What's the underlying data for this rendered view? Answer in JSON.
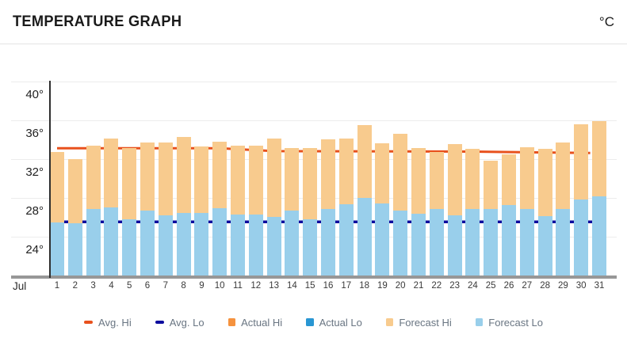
{
  "header": {
    "title": "TEMPERATURE GRAPH",
    "unit": "°C"
  },
  "x_axis": {
    "month_label": "Jul",
    "days": [
      "1",
      "2",
      "3",
      "4",
      "5",
      "6",
      "7",
      "8",
      "9",
      "10",
      "11",
      "12",
      "13",
      "14",
      "15",
      "16",
      "17",
      "18",
      "19",
      "20",
      "21",
      "22",
      "23",
      "24",
      "25",
      "26",
      "27",
      "28",
      "29",
      "30",
      "31"
    ]
  },
  "y_axis": {
    "tick_labels": [
      "40°",
      "36°",
      "32°",
      "28°",
      "24°"
    ]
  },
  "legend": {
    "items": [
      {
        "id": "avg-hi",
        "label": "Avg. Hi",
        "color": "#e8511d",
        "shape": "dash"
      },
      {
        "id": "avg-lo",
        "label": "Avg. Lo",
        "color": "#0c0c9e",
        "shape": "dash"
      },
      {
        "id": "actual-hi",
        "label": "Actual Hi",
        "color": "#f5923e",
        "shape": "square"
      },
      {
        "id": "actual-lo",
        "label": "Actual Lo",
        "color": "#2996d3",
        "shape": "square"
      },
      {
        "id": "forecast-hi",
        "label": "Forecast Hi",
        "color": "#f8cb8e",
        "shape": "square"
      },
      {
        "id": "forecast-lo",
        "label": "Forecast Lo",
        "color": "#99cfeb",
        "shape": "square"
      }
    ]
  },
  "chart_data": {
    "type": "bar",
    "title": "TEMPERATURE GRAPH",
    "unit": "°C",
    "month": "Jul",
    "categories": [
      1,
      2,
      3,
      4,
      5,
      6,
      7,
      8,
      9,
      10,
      11,
      12,
      13,
      14,
      15,
      16,
      17,
      18,
      19,
      20,
      21,
      22,
      23,
      24,
      25,
      26,
      27,
      28,
      29,
      30,
      31
    ],
    "series": [
      {
        "name": "Forecast Hi",
        "type": "bar",
        "color": "#f8cb8e",
        "values": [
          32.7,
          32.0,
          33.4,
          34.1,
          33.1,
          33.7,
          33.7,
          34.3,
          33.3,
          33.8,
          33.4,
          33.4,
          34.1,
          33.1,
          33.1,
          34.0,
          34.1,
          35.5,
          33.6,
          34.6,
          33.1,
          32.7,
          33.5,
          33.0,
          31.8,
          32.5,
          33.2,
          33.0,
          33.7,
          35.6,
          35.9
        ]
      },
      {
        "name": "Forecast Lo",
        "type": "bar",
        "color": "#99cfeb",
        "values": [
          25.4,
          25.4,
          26.8,
          27.0,
          25.8,
          26.7,
          26.2,
          26.4,
          26.4,
          26.9,
          26.3,
          26.3,
          26.0,
          26.7,
          25.8,
          26.8,
          27.3,
          28.0,
          27.4,
          26.7,
          26.3,
          26.8,
          26.2,
          26.8,
          26.8,
          27.2,
          26.8,
          26.1,
          26.8,
          27.8,
          28.1
        ]
      },
      {
        "name": "Actual Hi",
        "type": "bar",
        "color": "#f5923e",
        "values": []
      },
      {
        "name": "Actual Lo",
        "type": "bar",
        "color": "#2996d3",
        "values": []
      },
      {
        "name": "Avg. Hi",
        "type": "line",
        "color": "#e8511d",
        "points": [
          [
            1,
            33.1
          ],
          [
            10,
            33.1
          ],
          [
            13,
            32.8
          ],
          [
            24,
            32.75
          ],
          [
            30.5,
            32.6
          ]
        ]
      },
      {
        "name": "Avg. Lo",
        "type": "line",
        "color": "#0c0c9e",
        "points": [
          [
            0.8,
            25.5
          ],
          [
            30.7,
            25.5
          ]
        ]
      }
    ],
    "ylim": [
      20,
      40
    ],
    "yticks": [
      40,
      36,
      32,
      28,
      24
    ],
    "grid": true,
    "legend_position": "bottom",
    "colors": {
      "gridline": "#ececec",
      "axis": "#2e2e2e",
      "baseline": "#979797",
      "tick_text": "#1f1f1f",
      "legend_text": "#697582"
    }
  }
}
